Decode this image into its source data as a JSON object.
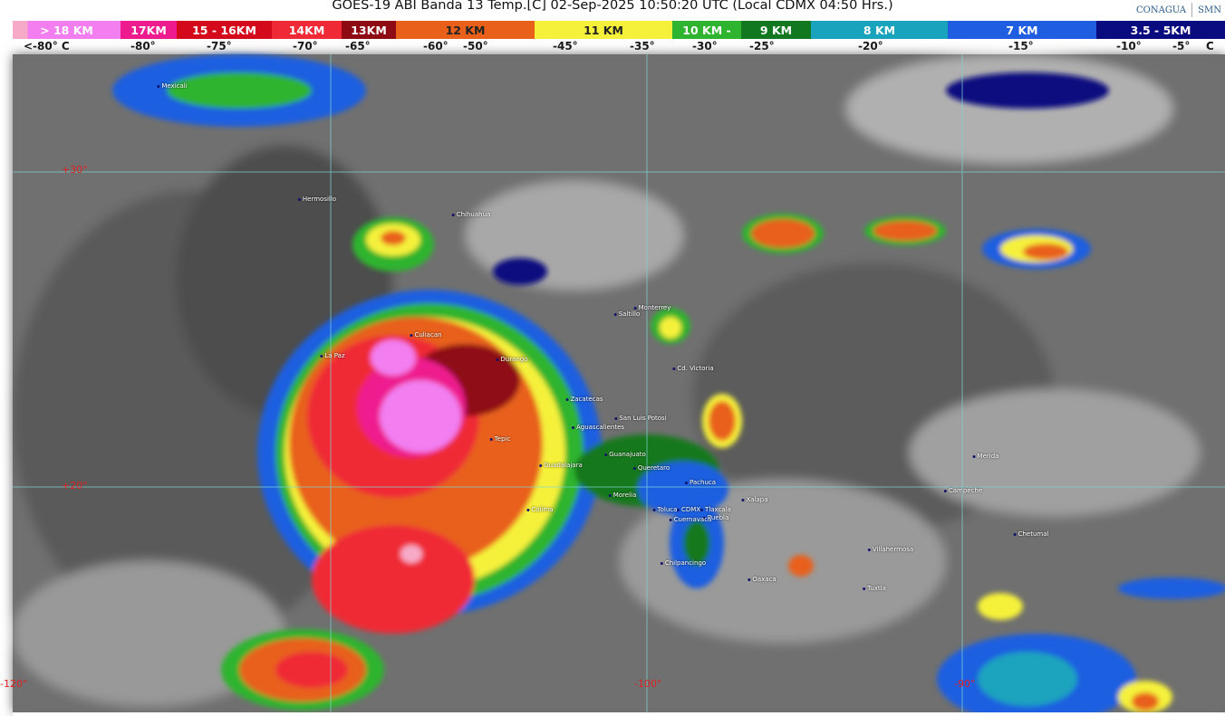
{
  "header": {
    "title": "GOES-19 ABI Banda 13 Temp.[C] 02-Sep-2025 10:50:20 UTC (Local CDMX  04:50 Hrs.)",
    "logos": [
      "CONAGUA",
      "SMN"
    ]
  },
  "legend": {
    "bands": [
      {
        "label": "> 18 KM",
        "color": "#f27ef0"
      },
      {
        "label": "17KM",
        "color": "#ee1b8e"
      },
      {
        "label": "15 - 16KM",
        "color": "#d40a1c"
      },
      {
        "label": "14KM",
        "color": "#ef2a36"
      },
      {
        "label": "13KM",
        "color": "#8f0b13"
      },
      {
        "label": "12 KM",
        "color": "#e8601a"
      },
      {
        "label": "11 KM",
        "color": "#f5f13a"
      },
      {
        "label": "10 KM -",
        "color": "#2fb42f"
      },
      {
        "label": "9 KM",
        "color": "#12781f"
      },
      {
        "label": "8 KM",
        "color": "#1aa3bd"
      },
      {
        "label": "7 KM",
        "color": "#1f5ee0"
      },
      {
        "label": "3.5 - 5KM",
        "color": "#0b0b80"
      }
    ],
    "temperatures": [
      "<-80° C",
      "-80°",
      "-75°",
      "-70°",
      "-65°",
      "-60°",
      "-50°",
      "-45°",
      "-35°",
      "-30°",
      "-25°",
      "-20°",
      "-15°",
      "-10°",
      "-5°",
      "C"
    ]
  },
  "map": {
    "latitudes": [
      "+30°",
      "+20°"
    ],
    "longitudes": [
      "-120°",
      "-100°",
      "-90°"
    ],
    "cities": [
      "Mexicali",
      "Hermosillo",
      "Chihuahua",
      "La Paz",
      "Culiacan",
      "Durango",
      "Saltillo",
      "Monterrey",
      "Cd. Victoria",
      "Zacatecas",
      "San Luis Potosi",
      "Aguascalientes",
      "Tepic",
      "Guanajuato",
      "Guadalajara",
      "Queretaro",
      "Morelia",
      "Pachuca",
      "Colima",
      "Toluca",
      "CDMX",
      "Tlaxcala",
      "Puebla",
      "Cuernavaca",
      "Chilpancingo",
      "Xalapa",
      "Oaxaca",
      "Villahermosa",
      "Tuxtla",
      "Campeche",
      "Merida",
      "Chetumal"
    ],
    "grid_color": "#7fd8d8",
    "background_color": "#6e6e6e"
  }
}
